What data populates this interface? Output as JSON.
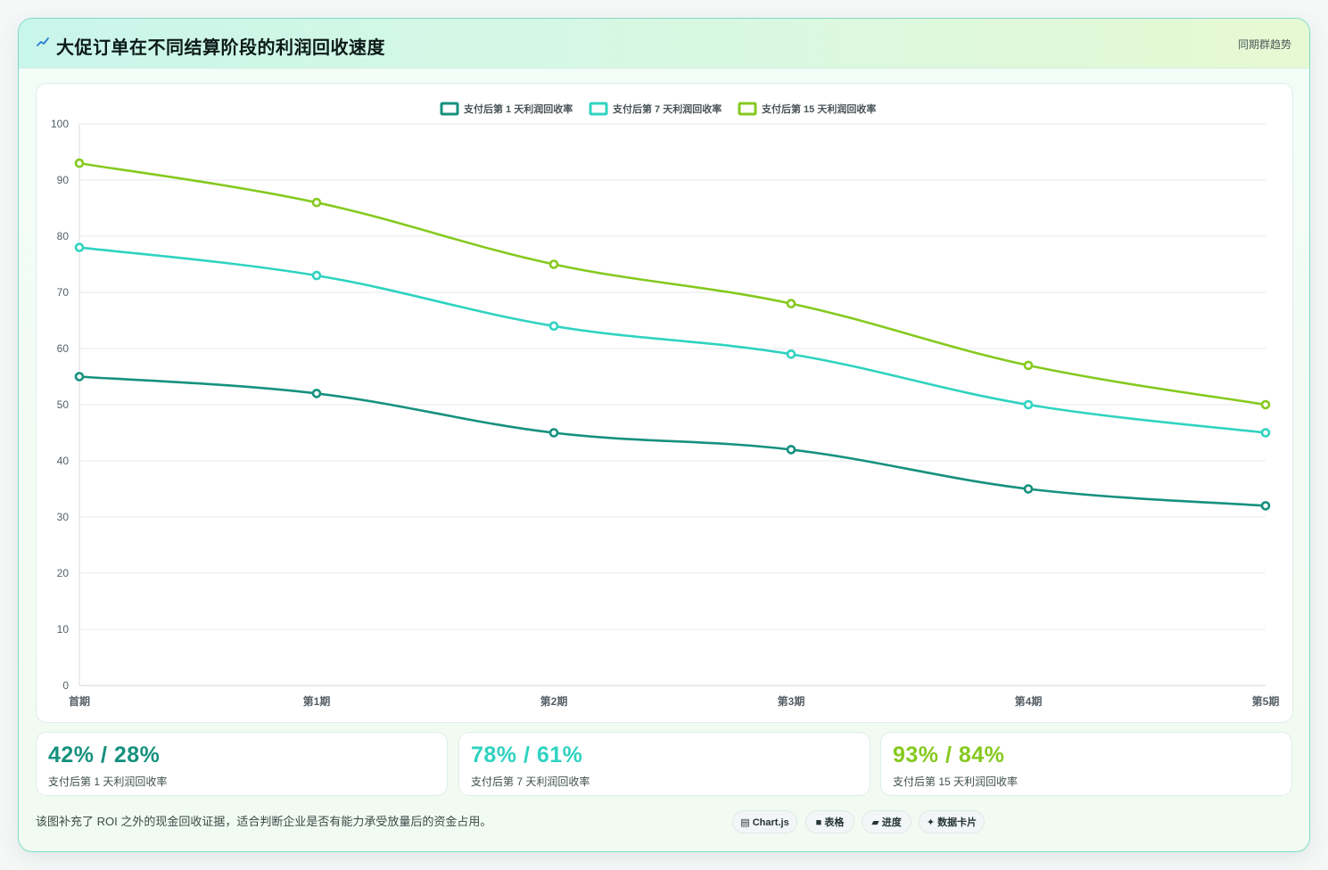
{
  "header": {
    "title": "大促订单在不同结算阶段的利润回收速度",
    "tag": "同期群趋势"
  },
  "colors": {
    "series1": "#16917f",
    "series7": "#2fd3c0",
    "series15": "#86c91f"
  },
  "chart_data": {
    "type": "line",
    "categories": [
      "首期",
      "第1期",
      "第2期",
      "第3期",
      "第4期",
      "第5期"
    ],
    "series": [
      {
        "name": "支付后第 1 天利润回收率",
        "values": [
          55,
          52,
          45,
          42,
          35,
          32
        ]
      },
      {
        "name": "支付后第 7 天利润回收率",
        "values": [
          78,
          73,
          64,
          59,
          50,
          45
        ]
      },
      {
        "name": "支付后第 15 天利润回收率",
        "values": [
          93,
          86,
          75,
          68,
          57,
          50
        ]
      }
    ],
    "ylim": [
      0,
      100
    ],
    "yticks": [
      0,
      10,
      20,
      30,
      40,
      50,
      60,
      70,
      80,
      90,
      100
    ],
    "grid": true,
    "legend_position": "top-center",
    "title": "",
    "xlabel": "",
    "ylabel": ""
  },
  "stats": [
    {
      "value": "42% / 28%",
      "label": "支付后第 1 天利润回收率",
      "color": "#16917f"
    },
    {
      "value": "78% / 61%",
      "label": "支付后第 7 天利润回收率",
      "color": "#2fd3c0"
    },
    {
      "value": "93% / 84%",
      "label": "支付后第 15 天利润回收率",
      "color": "#86c91f"
    }
  ],
  "footer": {
    "note": "该图补充了 ROI 之外的现金回收证据，适合判断企业是否有能力承受放量后的资金占用。",
    "chips": [
      {
        "icon": "chart-icon",
        "label": "Chart.js"
      },
      {
        "icon": "table-icon",
        "label": "表格"
      },
      {
        "icon": "progress-icon",
        "label": "进度"
      },
      {
        "icon": "card-icon",
        "label": "数据卡片"
      }
    ]
  }
}
